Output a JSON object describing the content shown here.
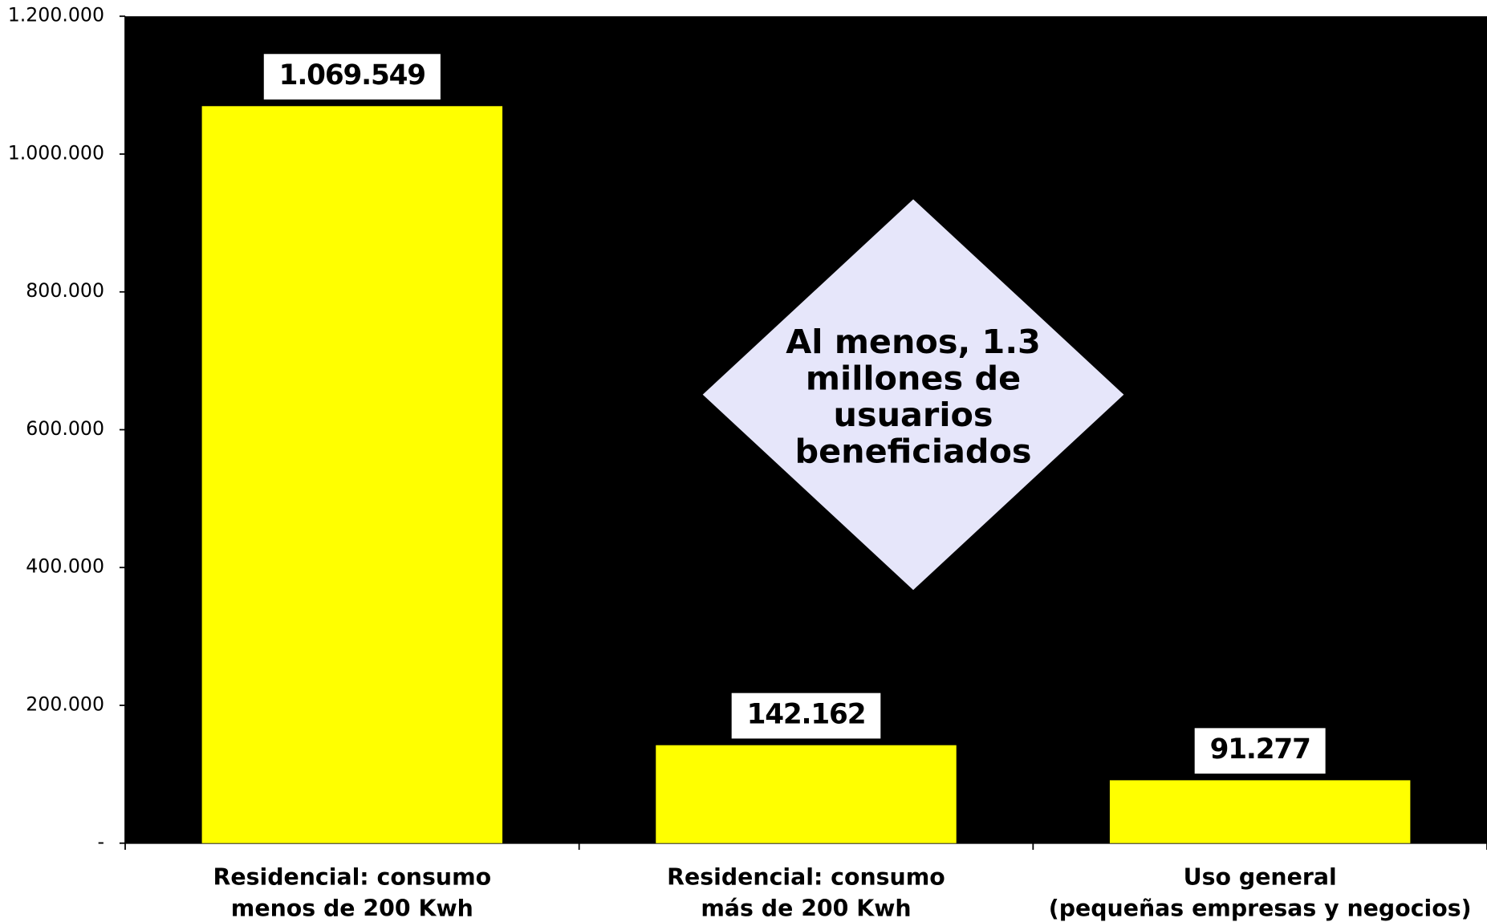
{
  "chart_data": {
    "type": "bar",
    "categories": [
      [
        "Residencial: consumo",
        "menos de 200 Kwh"
      ],
      [
        "Residencial: consumo",
        "más de 200 Kwh"
      ],
      [
        "Uso general",
        "(pequeñas empresas y negocios)"
      ]
    ],
    "values": [
      1069549,
      142162,
      91277
    ],
    "value_labels": [
      "1.069.549",
      "142.162",
      "91.277"
    ],
    "color": "#ffff00",
    "ylim": [
      0,
      1200000
    ],
    "yticks": [
      {
        "value": 0,
        "label": "-"
      },
      {
        "value": 200000,
        "label": "200.000"
      },
      {
        "value": 400000,
        "label": "400.000"
      },
      {
        "value": 600000,
        "label": "600.000"
      },
      {
        "value": 800000,
        "label": "800.000"
      },
      {
        "value": 1000000,
        "label": "1.000.000"
      },
      {
        "value": 1200000,
        "label": "1.200.000"
      }
    ],
    "annotation": [
      "Al menos, 1.3",
      "millones de",
      "usuarios",
      "beneficiados"
    ]
  }
}
